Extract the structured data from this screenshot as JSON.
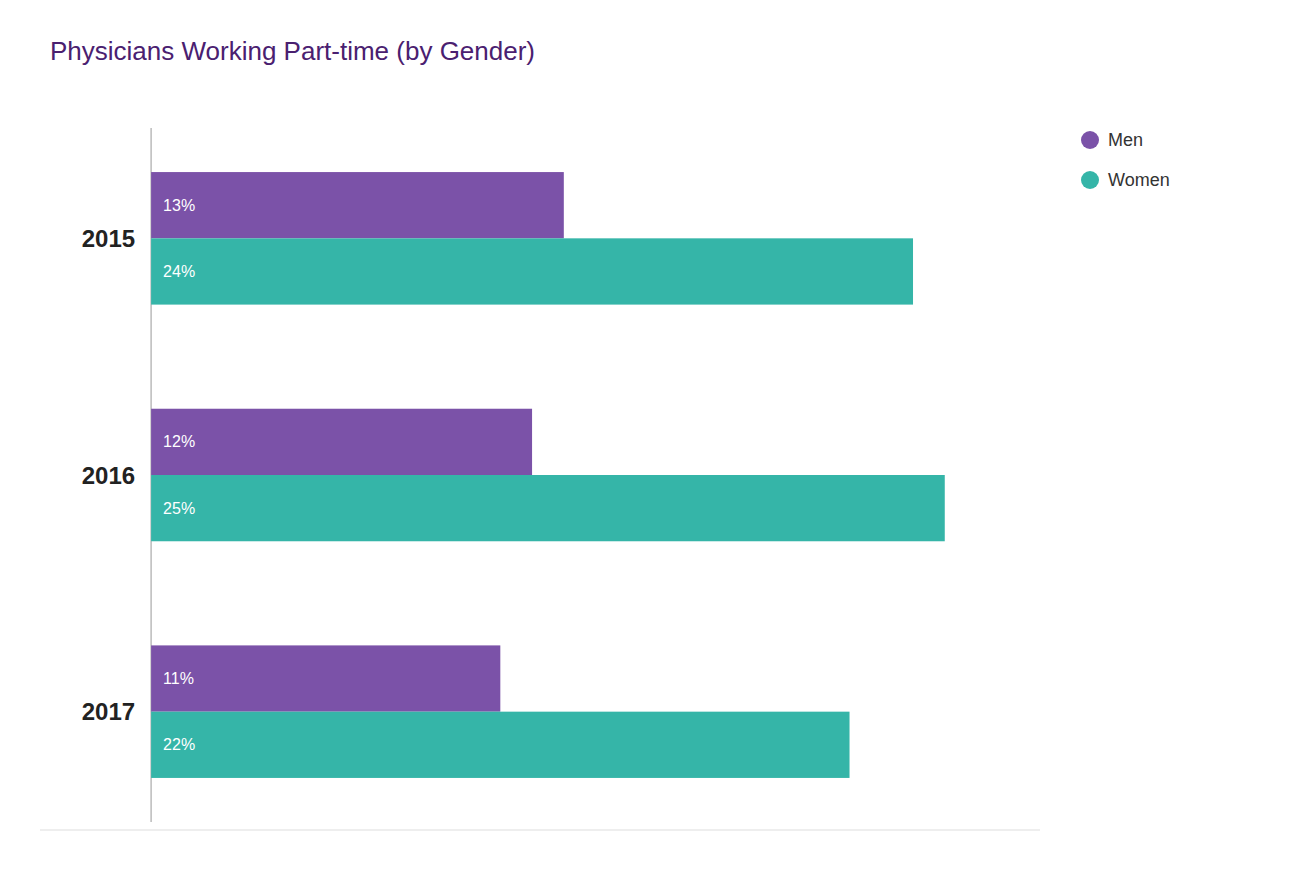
{
  "chart_data": {
    "type": "bar",
    "title": "Physicians Working Part-time (by Gender)",
    "orientation": "horizontal",
    "categories": [
      "2015",
      "2016",
      "2017"
    ],
    "series": [
      {
        "name": "Men",
        "color": "#7b52a8",
        "values": [
          13,
          12,
          11
        ],
        "value_labels": [
          "13%",
          "12%",
          "11%"
        ]
      },
      {
        "name": "Women",
        "color": "#35b5a8",
        "values": [
          24,
          25,
          22
        ],
        "value_labels": [
          "24%",
          "25%",
          "22%"
        ]
      }
    ],
    "xlim": [
      -3.5,
      28
    ],
    "data_labels": true,
    "tick_labels": "y",
    "grid": false,
    "legend": "upper right"
  }
}
